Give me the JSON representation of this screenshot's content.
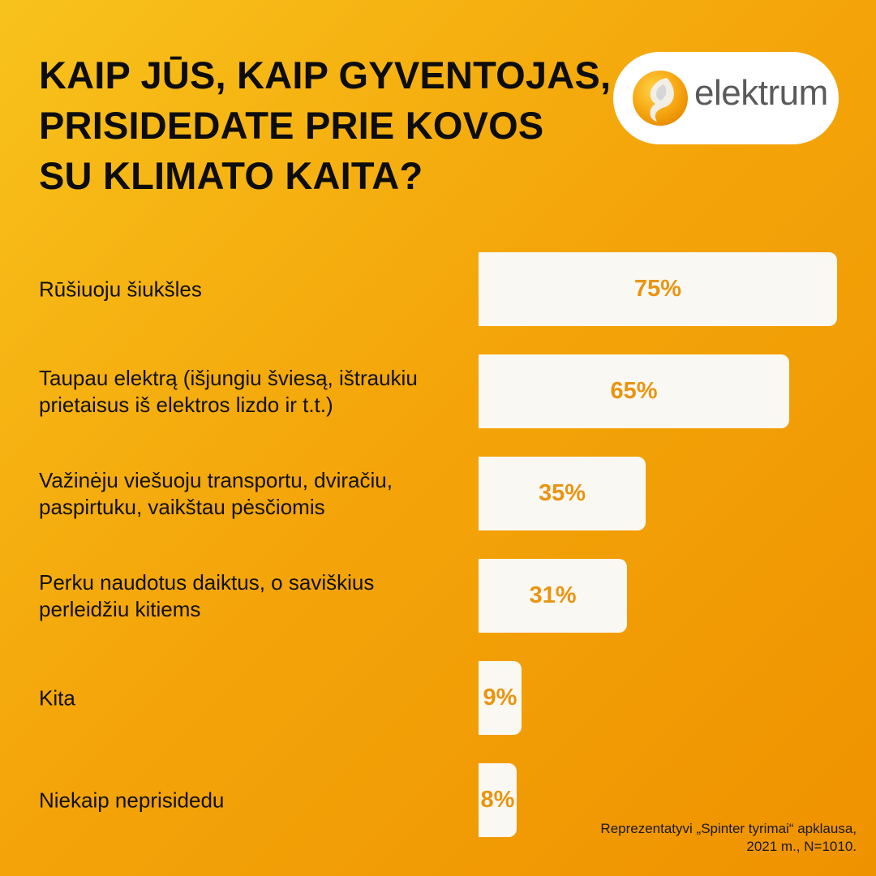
{
  "header": {
    "title_lines": [
      "KAIP JŪS, KAIP GYVENTOJAS,",
      "PRISIDEDATE PRIE KOVOS",
      "SU KLIMATO KAITA?"
    ]
  },
  "logo": {
    "text": "elektrum",
    "icon": "elektrum-swirl-icon",
    "colors": {
      "outer": "#f39200",
      "inner": "#d9d9d9",
      "text": "#5a5a5a"
    }
  },
  "chart_data": {
    "type": "bar",
    "orientation": "horizontal",
    "title": "KAIP JŪS, KAIP GYVENTOJAS, PRISIDEDATE PRIE KOVOS SU KLIMATO KAITA?",
    "categories": [
      "Rūšiuoju šiukšles",
      "Taupau elektrą (išjungiu šviesą, ištraukiu prietaisus iš elektros lizdo ir t.t.)",
      "Važinėju viešuoju transportu, dviračiu, paspirtuku, vaikštau pėsčiomis",
      "Perku naudotus daiktus, o saviškius perleidžiu kitiems",
      "Kita",
      "Niekaip neprisidedu"
    ],
    "values": [
      75,
      65,
      35,
      31,
      9,
      8
    ],
    "value_labels": [
      "75%",
      "65%",
      "35%",
      "31%",
      "9%",
      "8%"
    ],
    "unit": "%",
    "xlim": [
      0,
      75
    ],
    "grid": false,
    "legend": "none",
    "colors": {
      "bar": "#faf8f2",
      "value_text": "#ea9410"
    }
  },
  "footer": {
    "source_lines": [
      "Reprezentatyvi „Spinter tyrimai“ apklausa,",
      "2021 m., N=1010."
    ]
  }
}
